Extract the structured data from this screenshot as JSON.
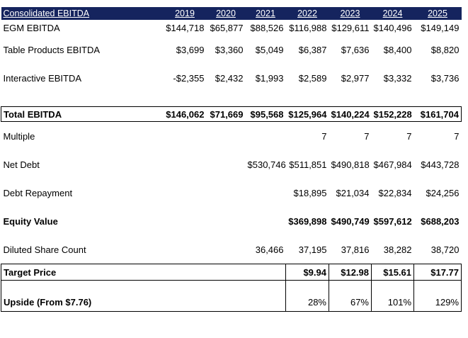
{
  "header": {
    "title": "Consolidated EBITDA",
    "years": [
      "2019",
      "2020",
      "2021",
      "2022",
      "2023",
      "2024",
      "2025"
    ]
  },
  "rows": {
    "egm": {
      "label": "EGM EBITDA",
      "values": [
        "$144,718",
        "$65,877",
        "$88,526",
        "$116,988",
        "$129,611",
        "$140,496",
        "$149,149"
      ]
    },
    "table_products": {
      "label": "Table Products EBITDA",
      "values": [
        "$3,699",
        "$3,360",
        "$5,049",
        "$6,387",
        "$7,636",
        "$8,400",
        "$8,820"
      ]
    },
    "interactive": {
      "label": "Interactive EBITDA",
      "values": [
        "-$2,355",
        "$2,432",
        "$1,993",
        "$2,589",
        "$2,977",
        "$3,332",
        "$3,736"
      ]
    },
    "total": {
      "label": "Total EBITDA",
      "values": [
        "$146,062",
        "$71,669",
        "$95,568",
        "$125,964",
        "$140,224",
        "$152,228",
        "$161,704"
      ]
    },
    "multiple": {
      "label": "Multiple",
      "values": [
        "",
        "",
        "",
        "7",
        "7",
        "7",
        "7"
      ]
    },
    "net_debt": {
      "label": "Net Debt",
      "values": [
        "",
        "",
        "$530,746",
        "$511,851",
        "$490,818",
        "$467,984",
        "$443,728"
      ]
    },
    "debt_repayment": {
      "label": "Debt Repayment",
      "values": [
        "",
        "",
        "",
        "$18,895",
        "$21,034",
        "$22,834",
        "$24,256"
      ]
    },
    "equity_value": {
      "label": "Equity Value",
      "values": [
        "",
        "",
        "",
        "$369,898",
        "$490,749",
        "$597,612",
        "$688,203"
      ]
    },
    "diluted_shares": {
      "label": "Diluted Share Count",
      "values": [
        "",
        "",
        "36,466",
        "37,195",
        "37,816",
        "38,282",
        "38,720"
      ]
    },
    "target_price": {
      "label": "Target Price",
      "values": [
        "",
        "",
        "",
        "$9.94",
        "$12.98",
        "$15.61",
        "$17.77"
      ]
    },
    "upside": {
      "label": "Upside (From $7.76)",
      "values": [
        "",
        "",
        "",
        "28%",
        "67%",
        "101%",
        "129%"
      ]
    }
  },
  "colors": {
    "header_bg": "#15245e",
    "header_text": "#ffffff",
    "grid_line": "#000000"
  }
}
